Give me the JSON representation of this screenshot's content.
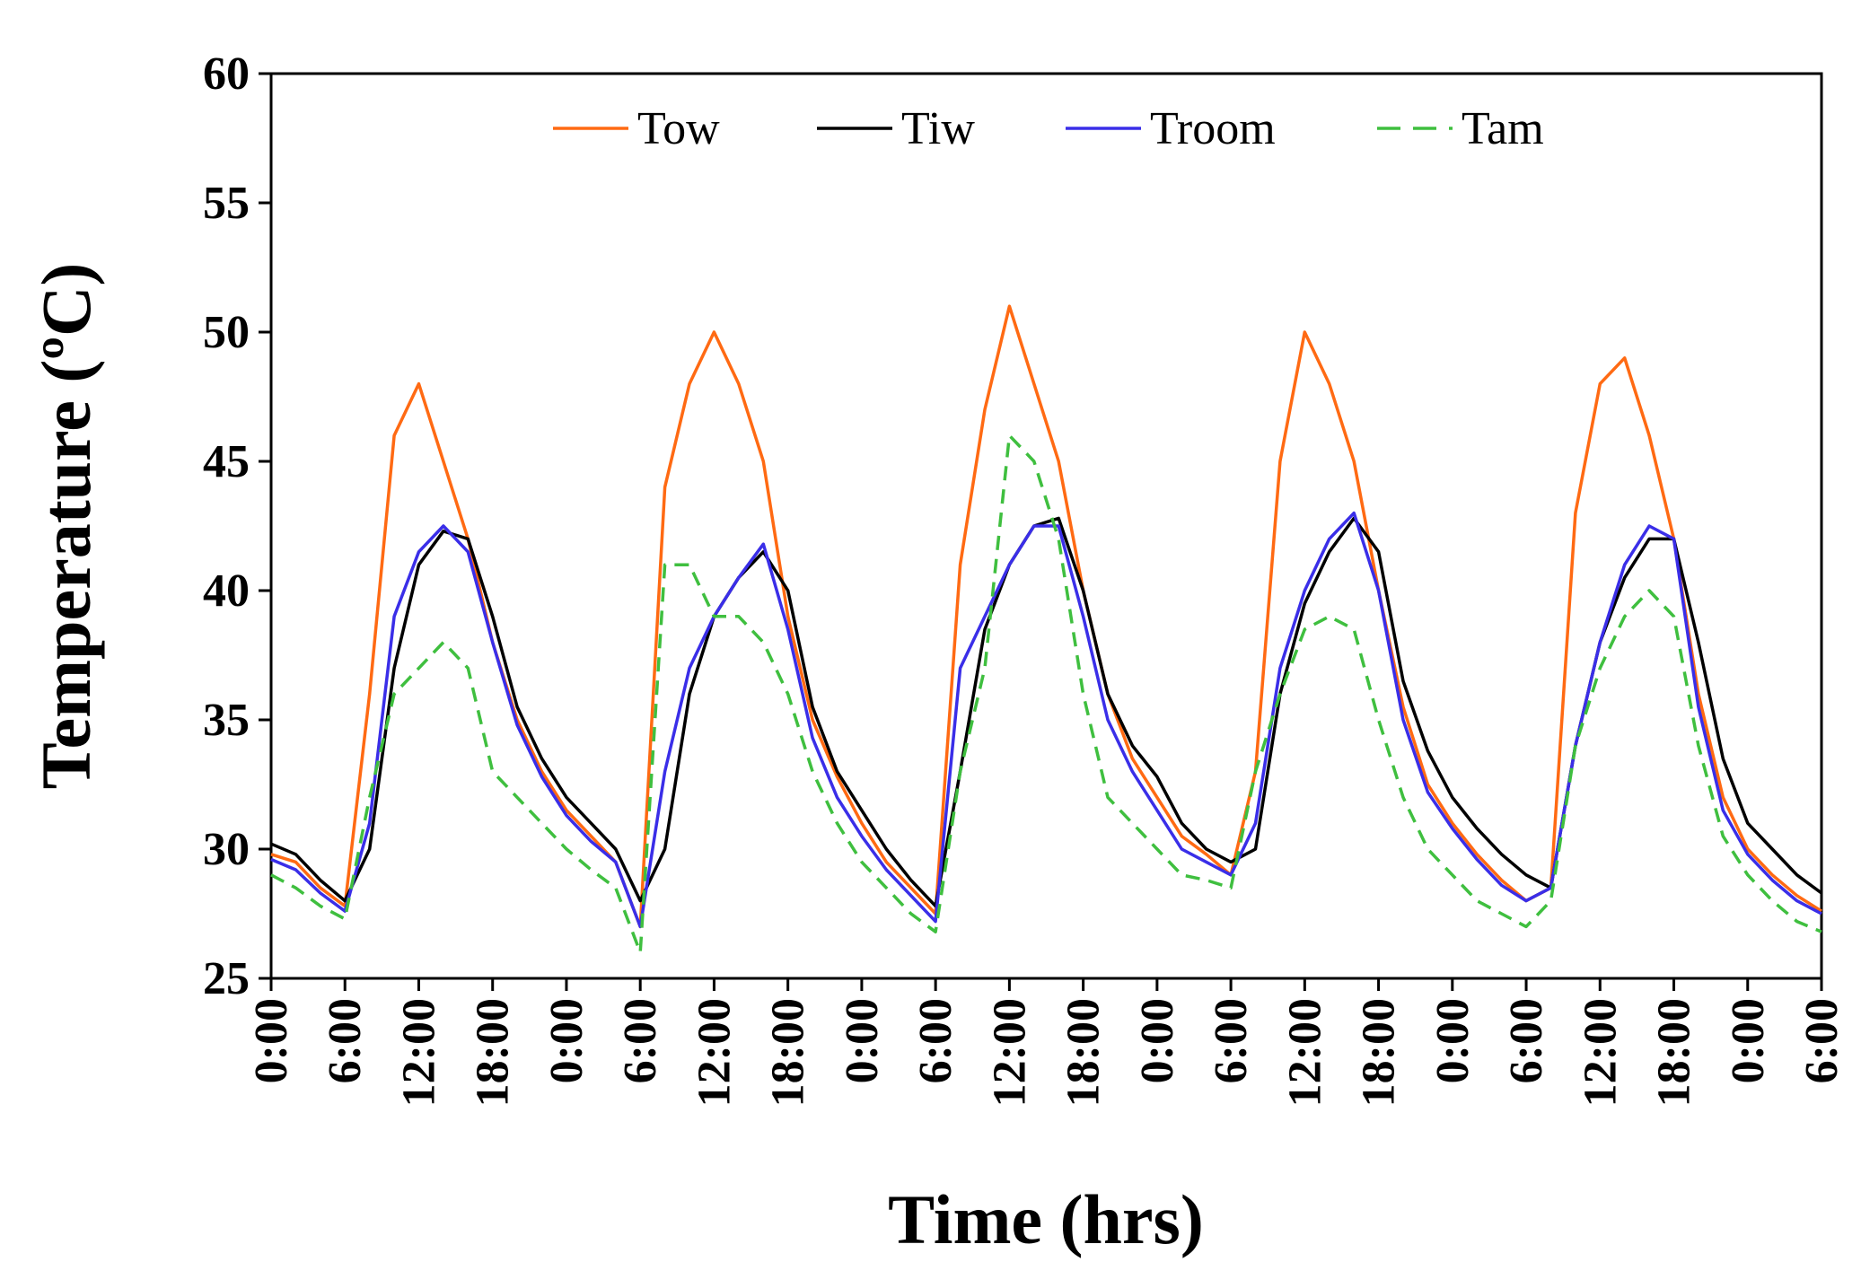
{
  "chart_data": {
    "type": "line",
    "xlabel": "Time (hrs)",
    "ylabel": "Temperature (ºC)",
    "x": [
      0,
      2,
      4,
      6,
      8,
      10,
      12,
      14,
      16,
      18,
      20,
      22,
      24,
      26,
      28,
      30,
      32,
      34,
      36,
      38,
      40,
      42,
      44,
      46,
      48,
      50,
      52,
      54,
      56,
      58,
      60,
      62,
      64,
      66,
      68,
      70,
      72,
      74,
      76,
      78,
      80,
      82,
      84,
      86,
      88,
      90,
      92,
      94,
      96,
      98,
      100,
      102,
      104,
      106,
      108,
      110,
      112,
      114,
      116,
      118,
      120,
      122,
      124,
      126
    ],
    "series": [
      {
        "name": "Tow",
        "color": "#ff6a13",
        "dash": false,
        "values": [
          29.8,
          29.5,
          28.5,
          27.8,
          36,
          46,
          48,
          45,
          42,
          38,
          35,
          33,
          31.5,
          30.5,
          29.5,
          27,
          44,
          48,
          50,
          48,
          45,
          39,
          35,
          32.8,
          31,
          29.5,
          28.5,
          27.5,
          41,
          47,
          51,
          48,
          45,
          40,
          36,
          33.5,
          32,
          30.5,
          29.8,
          29,
          33,
          45,
          50,
          48,
          45,
          40,
          35.5,
          32.5,
          31,
          29.8,
          28.8,
          28,
          28.5,
          43,
          48,
          49,
          46,
          42,
          36,
          32,
          30,
          29,
          28.2,
          27.6
        ]
      },
      {
        "name": "Tiw",
        "color": "#000000",
        "dash": false,
        "values": [
          30.2,
          29.8,
          28.8,
          28,
          30,
          37,
          41,
          42.3,
          42,
          39,
          35.5,
          33.5,
          32,
          31,
          30,
          28,
          30,
          36,
          39,
          40.5,
          41.5,
          40,
          35.5,
          33,
          31.5,
          30,
          28.8,
          27.8,
          33,
          38.5,
          41,
          42.5,
          42.8,
          40,
          36,
          34,
          32.8,
          31,
          30,
          29.5,
          30,
          36,
          39.5,
          41.5,
          42.8,
          41.5,
          36.5,
          33.8,
          32,
          30.8,
          29.8,
          29,
          28.5,
          34,
          38,
          40.5,
          42,
          42,
          38,
          33.5,
          31,
          30,
          29,
          28.3
        ]
      },
      {
        "name": "Troom",
        "color": "#3a2ee8",
        "dash": false,
        "values": [
          29.6,
          29.2,
          28.3,
          27.6,
          31,
          39,
          41.5,
          42.5,
          41.5,
          38,
          34.8,
          32.8,
          31.3,
          30.3,
          29.5,
          27,
          33,
          37,
          39,
          40.5,
          41.8,
          38.5,
          34.3,
          32,
          30.5,
          29.2,
          28.2,
          27.2,
          37,
          39,
          41,
          42.5,
          42.5,
          39,
          35,
          33,
          31.5,
          30,
          29.5,
          29,
          31,
          37,
          40,
          42,
          43,
          40,
          35,
          32.2,
          30.8,
          29.6,
          28.6,
          28,
          28.5,
          34,
          38,
          41,
          42.5,
          42,
          35.5,
          31.5,
          29.8,
          28.8,
          28,
          27.5
        ]
      },
      {
        "name": "Tam",
        "color": "#3fbf3f",
        "dash": true,
        "values": [
          29,
          28.5,
          27.8,
          27.3,
          32,
          36,
          37,
          38,
          37,
          33,
          32,
          31,
          30,
          29.2,
          28.5,
          26,
          41,
          41,
          39,
          39,
          38,
          36,
          33,
          31,
          29.5,
          28.5,
          27.5,
          26.8,
          33,
          37,
          46,
          45,
          42,
          36,
          32,
          31,
          30,
          29,
          28.8,
          28.5,
          33,
          36,
          38.5,
          39,
          38.5,
          35,
          32,
          30,
          29,
          28,
          27.5,
          27,
          28,
          34,
          37,
          39,
          40,
          39,
          34,
          30.5,
          29,
          28,
          27.2,
          26.8
        ]
      }
    ],
    "xlim": [
      0,
      126
    ],
    "xticks": [
      {
        "value": 0,
        "label": "0:00"
      },
      {
        "value": 6,
        "label": "6:00"
      },
      {
        "value": 12,
        "label": "12:00"
      },
      {
        "value": 18,
        "label": "18:00"
      },
      {
        "value": 24,
        "label": "0:00"
      },
      {
        "value": 30,
        "label": "6:00"
      },
      {
        "value": 36,
        "label": "12:00"
      },
      {
        "value": 42,
        "label": "18:00"
      },
      {
        "value": 48,
        "label": "0:00"
      },
      {
        "value": 54,
        "label": "6:00"
      },
      {
        "value": 60,
        "label": "12:00"
      },
      {
        "value": 66,
        "label": "18:00"
      },
      {
        "value": 72,
        "label": "0:00"
      },
      {
        "value": 78,
        "label": "6:00"
      },
      {
        "value": 84,
        "label": "12:00"
      },
      {
        "value": 90,
        "label": "18:00"
      },
      {
        "value": 96,
        "label": "0:00"
      },
      {
        "value": 102,
        "label": "6:00"
      },
      {
        "value": 108,
        "label": "12:00"
      },
      {
        "value": 114,
        "label": "18:00"
      },
      {
        "value": 120,
        "label": "0:00"
      },
      {
        "value": 126,
        "label": "6:00"
      }
    ],
    "ylim": [
      25,
      60
    ],
    "yticks": [
      25,
      30,
      35,
      40,
      45,
      50,
      55,
      60
    ],
    "grid": false,
    "legend": "top"
  }
}
